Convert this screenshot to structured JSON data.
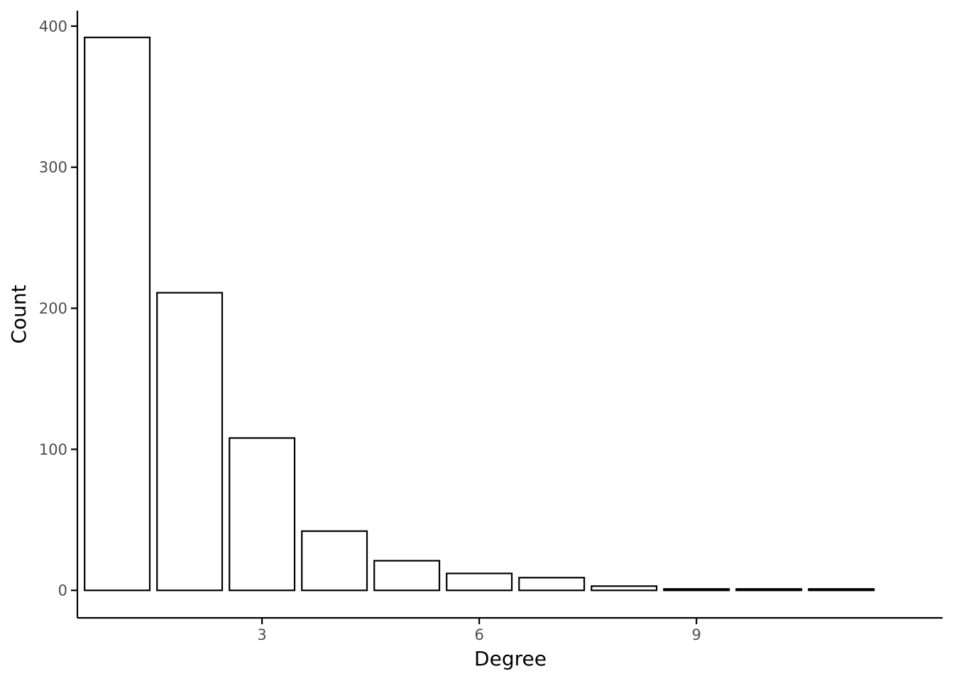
{
  "chart_data": {
    "type": "bar",
    "xlabel": "Degree",
    "ylabel": "Count",
    "x": [
      1,
      2,
      3,
      4,
      5,
      6,
      7,
      8,
      9,
      10,
      11
    ],
    "values": [
      392,
      211,
      108,
      42,
      21,
      12,
      9,
      3,
      1,
      1,
      1
    ],
    "xlim": [
      0.45,
      12.4
    ],
    "ylim": [
      -19.5,
      411
    ],
    "x_ticks": [
      3,
      6,
      9
    ],
    "x_tick_labels": [
      "3",
      "6",
      "9"
    ],
    "y_ticks": [
      0,
      100,
      200,
      300,
      400
    ],
    "y_tick_labels": [
      "0",
      "100",
      "200",
      "300",
      "400"
    ],
    "bar_fill": "#ffffff",
    "bar_stroke": "#000000",
    "grid": false,
    "legend": "none"
  }
}
